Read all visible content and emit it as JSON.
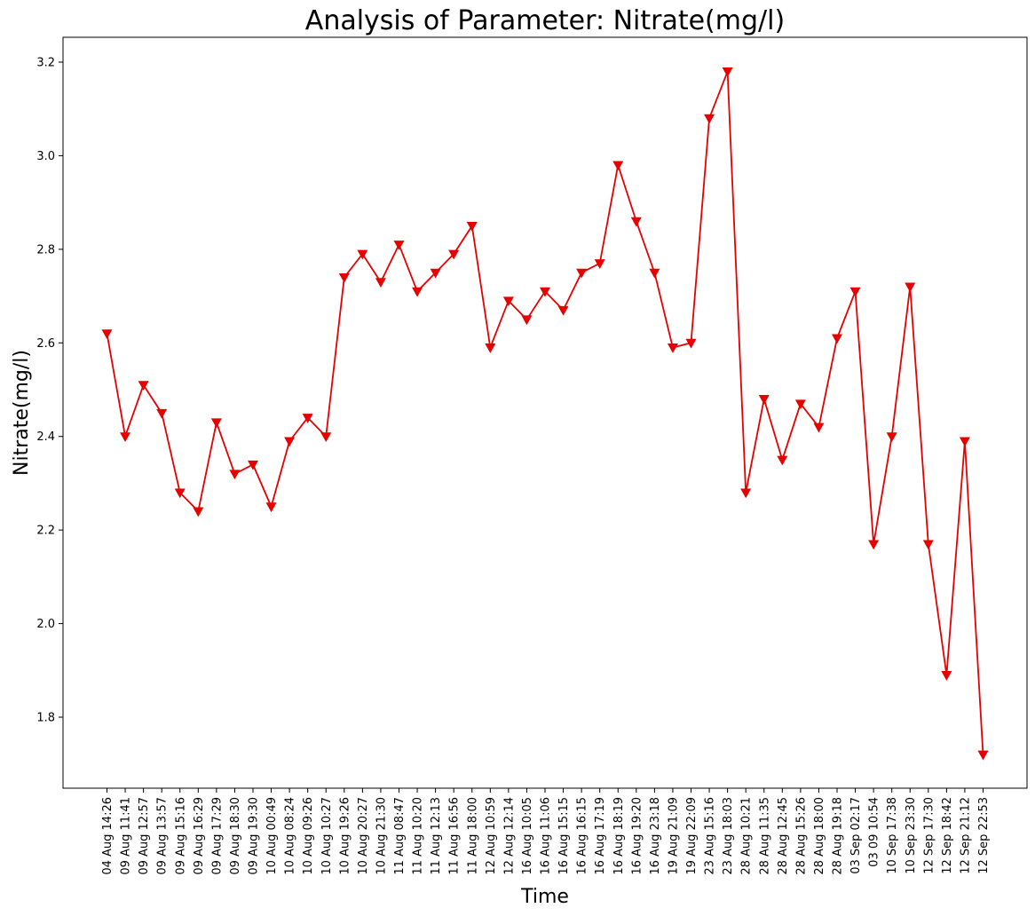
{
  "chart_data": {
    "type": "line",
    "title": "Analysis of Parameter: Nitrate(mg/l)",
    "xlabel": "Time",
    "ylabel": "Nitrate(mg/l)",
    "ylim": [
      1.65,
      3.25
    ],
    "yticks": [
      "1.8",
      "2.0",
      "2.2",
      "2.4",
      "2.6",
      "2.8",
      "3.0",
      "3.2"
    ],
    "ytick_values": [
      1.8,
      2.0,
      2.2,
      2.4,
      2.6,
      2.8,
      3.0,
      3.2
    ],
    "grid": false,
    "marker": "triangle-down",
    "color": "#e60000",
    "categories": [
      "04 Aug 14:26",
      "09 Aug 11:41",
      "09 Aug 12:57",
      "09 Aug 13:57",
      "09 Aug 15:16",
      "09 Aug 16:29",
      "09 Aug 17:29",
      "09 Aug 18:30",
      "09 Aug 19:30",
      "10 Aug 00:49",
      "10 Aug 08:24",
      "10 Aug 09:26",
      "10 Aug 10:27",
      "10 Aug 19:26",
      "10 Aug 20:27",
      "10 Aug 21:30",
      "11 Aug 08:47",
      "11 Aug 10:20",
      "11 Aug 12:13",
      "11 Aug 16:56",
      "11 Aug 18:00",
      "12 Aug 10:59",
      "12 Aug 12:14",
      "16 Aug 10:05",
      "16 Aug 11:06",
      "16 Aug 15:15",
      "16 Aug 16:15",
      "16 Aug 17:19",
      "16 Aug 18:19",
      "16 Aug 19:20",
      "16 Aug 23:18",
      "19 Aug 21:09",
      "19 Aug 22:09",
      "23 Aug 15:16",
      "23 Aug 18:03",
      "28 Aug 10:21",
      "28 Aug 11:35",
      "28 Aug 12:45",
      "28 Aug 15:26",
      "28 Aug 18:00",
      "28 Aug 19:18",
      "03 Sep 02:17",
      "03 09 10:54",
      "10 Sep 17:38",
      "10 Sep 23:30",
      "12 Sep 17:30",
      "12 Sep 18:42",
      "12 Sep 21:12",
      "12 Sep 22:53"
    ],
    "values": [
      2.62,
      2.4,
      2.51,
      2.45,
      2.28,
      2.24,
      2.43,
      2.32,
      2.34,
      2.25,
      2.39,
      2.44,
      2.4,
      2.74,
      2.79,
      2.73,
      2.81,
      2.71,
      2.75,
      2.79,
      2.85,
      2.59,
      2.69,
      2.65,
      2.71,
      2.67,
      2.75,
      2.77,
      2.98,
      2.86,
      2.75,
      2.59,
      2.6,
      3.08,
      3.18,
      2.28,
      2.48,
      2.35,
      2.47,
      2.42,
      2.61,
      2.71,
      2.17,
      2.4,
      2.72,
      2.17,
      1.89,
      2.39,
      1.72
    ]
  }
}
